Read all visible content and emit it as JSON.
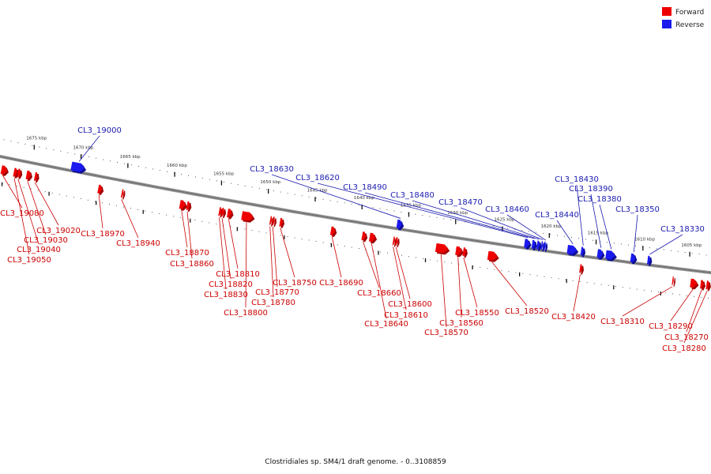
{
  "colors": {
    "forward": "#ee0000",
    "reverse": "#1a1aee",
    "forward_label": "#cc0000",
    "reverse_label": "#1a1ab0",
    "backbone": "#777777"
  },
  "legend": {
    "forward": "Forward",
    "reverse": "Reverse"
  },
  "caption": "Clostridiales sp. SM4/1 draft genome. - 0..3108859",
  "kbp_ticks": [
    {
      "label": "1675 kbp",
      "pos": 1675
    },
    {
      "label": "1670 kbp",
      "pos": 1670
    },
    {
      "label": "1665 kbp",
      "pos": 1665
    },
    {
      "label": "1660 kbp",
      "pos": 1660
    },
    {
      "label": "1655 kbp",
      "pos": 1655
    },
    {
      "label": "1650 kbp",
      "pos": 1650
    },
    {
      "label": "1645 kbp",
      "pos": 1645
    },
    {
      "label": "1640 kbp",
      "pos": 1640
    },
    {
      "label": "1635 kbp",
      "pos": 1635
    },
    {
      "label": "1630 kbp",
      "pos": 1630
    },
    {
      "label": "1625 kbp",
      "pos": 1625
    },
    {
      "label": "1620 kbp",
      "pos": 1620
    },
    {
      "label": "1615 kbp",
      "pos": 1615
    },
    {
      "label": "1610 kbp",
      "pos": 1610
    },
    {
      "label": "1605 kbp",
      "pos": 1605
    }
  ],
  "genes": [
    {
      "id": "CL3_19080",
      "strand": "forward",
      "pos": 1677.6,
      "len": 0.6
    },
    {
      "id": "CL3_19050",
      "strand": "forward",
      "pos": 1676.4,
      "len": 0.35
    },
    {
      "id": "CL3_19040",
      "strand": "forward",
      "pos": 1676.0,
      "len": 0.3
    },
    {
      "id": "CL3_19030",
      "strand": "forward",
      "pos": 1675.0,
      "len": 0.45
    },
    {
      "id": "CL3_19020",
      "strand": "forward",
      "pos": 1674.2,
      "len": 0.3
    },
    {
      "id": "CL3_19000",
      "strand": "reverse",
      "pos": 1670.1,
      "len": 1.4
    },
    {
      "id": "CL3_18970",
      "strand": "forward",
      "pos": 1667.4,
      "len": 0.4
    },
    {
      "id": "CL3_18940",
      "strand": "forward",
      "pos": 1665.0,
      "len": 0.2
    },
    {
      "id": "CL3_18870",
      "strand": "forward",
      "pos": 1658.6,
      "len": 0.6
    },
    {
      "id": "CL3_18860",
      "strand": "forward",
      "pos": 1658.0,
      "len": 0.3
    },
    {
      "id": "CL3_18830",
      "strand": "forward",
      "pos": 1654.6,
      "len": 0.25
    },
    {
      "id": "CL3_18820",
      "strand": "forward",
      "pos": 1654.3,
      "len": 0.25
    },
    {
      "id": "CL3_18810",
      "strand": "forward",
      "pos": 1653.6,
      "len": 0.45
    },
    {
      "id": "CL3_18800",
      "strand": "forward",
      "pos": 1651.7,
      "len": 1.2
    },
    {
      "id": "CL3_18780",
      "strand": "forward",
      "pos": 1649.2,
      "len": 0.2
    },
    {
      "id": "CL3_18770",
      "strand": "forward",
      "pos": 1648.9,
      "len": 0.2
    },
    {
      "id": "CL3_18750",
      "strand": "forward",
      "pos": 1648.1,
      "len": 0.3
    },
    {
      "id": "CL3_18690",
      "strand": "forward",
      "pos": 1642.6,
      "len": 0.45
    },
    {
      "id": "CL3_18630",
      "strand": "reverse",
      "pos": 1635.8,
      "len": 0.55
    },
    {
      "id": "CL3_18660",
      "strand": "forward",
      "pos": 1639.3,
      "len": 0.4
    },
    {
      "id": "CL3_18640",
      "strand": "forward",
      "pos": 1638.4,
      "len": 0.6
    },
    {
      "id": "CL3_18610",
      "strand": "forward",
      "pos": 1636.1,
      "len": 0.2
    },
    {
      "id": "CL3_18600",
      "strand": "forward",
      "pos": 1635.8,
      "len": 0.2
    },
    {
      "id": "CL3_18570",
      "strand": "forward",
      "pos": 1631.0,
      "len": 1.3
    },
    {
      "id": "CL3_18560",
      "strand": "forward",
      "pos": 1629.2,
      "len": 0.65
    },
    {
      "id": "CL3_18550",
      "strand": "forward",
      "pos": 1628.6,
      "len": 0.3
    },
    {
      "id": "CL3_18520",
      "strand": "forward",
      "pos": 1625.6,
      "len": 1.0
    },
    {
      "id": "CL3_18620",
      "strand": "reverse",
      "pos": 1622.2,
      "len": 0.55
    },
    {
      "id": "CL3_18490",
      "strand": "reverse",
      "pos": 1621.5,
      "len": 0.35
    },
    {
      "id": "CL3_18480",
      "strand": "reverse",
      "pos": 1621.0,
      "len": 0.3
    },
    {
      "id": "CL3_18470",
      "strand": "reverse",
      "pos": 1620.6,
      "len": 0.2
    },
    {
      "id": "CL3_18460",
      "strand": "reverse",
      "pos": 1620.3,
      "len": 0.2
    },
    {
      "id": "CL3_18440",
      "strand": "reverse",
      "pos": 1617.4,
      "len": 1.0
    },
    {
      "id": "CL3_18430",
      "strand": "reverse",
      "pos": 1616.3,
      "len": 0.3
    },
    {
      "id": "CL3_18420",
      "strand": "forward",
      "pos": 1616.2,
      "len": 0.25
    },
    {
      "id": "CL3_18390",
      "strand": "reverse",
      "pos": 1614.4,
      "len": 0.6
    },
    {
      "id": "CL3_18380",
      "strand": "reverse",
      "pos": 1613.3,
      "len": 1.0
    },
    {
      "id": "CL3_18350",
      "strand": "reverse",
      "pos": 1610.9,
      "len": 0.5
    },
    {
      "id": "CL3_18330",
      "strand": "reverse",
      "pos": 1609.2,
      "len": 0.3
    },
    {
      "id": "CL3_18310",
      "strand": "forward",
      "pos": 1606.4,
      "len": 0.15
    },
    {
      "id": "CL3_18290",
      "strand": "forward",
      "pos": 1604.2,
      "len": 0.7
    },
    {
      "id": "CL3_18270",
      "strand": "forward",
      "pos": 1603.3,
      "len": 0.35
    },
    {
      "id": "CL3_18280",
      "strand": "forward",
      "pos": 1602.7,
      "len": 0.3
    }
  ],
  "labels": [
    {
      "gene": "CL3_19080",
      "text": "CL3_19080"
    },
    {
      "gene": "CL3_19050",
      "text": "CL3_19050"
    },
    {
      "gene": "CL3_19040",
      "text": "CL3_19040"
    },
    {
      "gene": "CL3_19030",
      "text": "CL3_19030"
    },
    {
      "gene": "CL3_19020",
      "text": "CL3_19020"
    },
    {
      "gene": "CL3_19000",
      "text": "CL3_19000"
    },
    {
      "gene": "CL3_18970",
      "text": "CL3_18970"
    },
    {
      "gene": "CL3_18940",
      "text": "CL3_18940"
    },
    {
      "gene": "CL3_18870",
      "text": "CL3_18870"
    },
    {
      "gene": "CL3_18860",
      "text": "CL3_18860"
    },
    {
      "gene": "CL3_18830",
      "text": "CL3_18830"
    },
    {
      "gene": "CL3_18820",
      "text": "CL3_18820"
    },
    {
      "gene": "CL3_18810",
      "text": "CL3_18810"
    },
    {
      "gene": "CL3_18800",
      "text": "CL3_18800"
    },
    {
      "gene": "CL3_18780",
      "text": "CL3_18780"
    },
    {
      "gene": "CL3_18770",
      "text": "CL3_18770"
    },
    {
      "gene": "CL3_18750",
      "text": "CL3_18750"
    },
    {
      "gene": "CL3_18690",
      "text": "CL3_18690"
    },
    {
      "gene": "CL3_18630",
      "text": "CL3_18630"
    },
    {
      "gene": "CL3_18660",
      "text": "CL3_18660"
    },
    {
      "gene": "CL3_18640",
      "text": "CL3_18640"
    },
    {
      "gene": "CL3_18610",
      "text": "CL3_18610"
    },
    {
      "gene": "CL3_18600",
      "text": "CL3_18600"
    },
    {
      "gene": "CL3_18570",
      "text": "CL3_18570"
    },
    {
      "gene": "CL3_18560",
      "text": "CL3_18560"
    },
    {
      "gene": "CL3_18550",
      "text": "CL3_18550"
    },
    {
      "gene": "CL3_18520",
      "text": "CL3_18520"
    },
    {
      "gene": "CL3_18620",
      "text": "CL3_18620"
    },
    {
      "gene": "CL3_18490",
      "text": "CL3_18490"
    },
    {
      "gene": "CL3_18480",
      "text": "CL3_18480"
    },
    {
      "gene": "CL3_18470",
      "text": "CL3_18470"
    },
    {
      "gene": "CL3_18460",
      "text": "CL3_18460"
    },
    {
      "gene": "CL3_18440",
      "text": "CL3_18440"
    },
    {
      "gene": "CL3_18430",
      "text": "CL3_18430"
    },
    {
      "gene": "CL3_18420",
      "text": "CL3_18420"
    },
    {
      "gene": "CL3_18390",
      "text": "CL3_18390"
    },
    {
      "gene": "CL3_18380",
      "text": "CL3_18380"
    },
    {
      "gene": "CL3_18350",
      "text": "CL3_18350"
    },
    {
      "gene": "CL3_18330",
      "text": "CL3_18330"
    },
    {
      "gene": "CL3_18310",
      "text": "CL3_18310"
    },
    {
      "gene": "CL3_18290",
      "text": "CL3_18290"
    },
    {
      "gene": "CL3_18270",
      "text": "CL3_18270"
    },
    {
      "gene": "CL3_18280",
      "text": "CL3_18280"
    }
  ]
}
